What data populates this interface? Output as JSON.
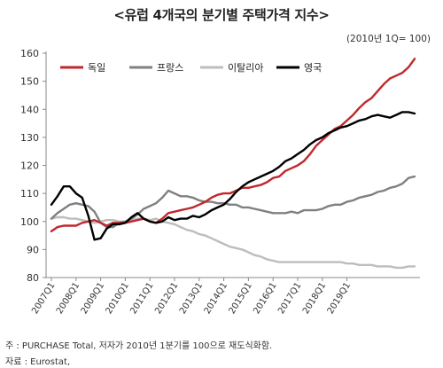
{
  "chart_data": {
    "type": "line",
    "title": "<유럽 4개국의 분기별 주택가격 지수>",
    "subtitle": "(2010년 1Q= 100)",
    "ylim": [
      80,
      160
    ],
    "yticks": [
      80,
      90,
      100,
      110,
      120,
      130,
      140,
      150,
      160
    ],
    "x_labels": [
      "2007Q1",
      "2008Q1",
      "2009Q1",
      "2010Q1",
      "2011Q1",
      "2012Q1",
      "2013Q1",
      "2014Q1",
      "2015Q1",
      "2016Q1",
      "2017Q1",
      "2018Q1",
      "2019Q1"
    ],
    "x_start": "2007Q1",
    "x_end": "2020Q2",
    "grid": false,
    "legend_position": "top",
    "series": [
      {
        "name": "독일",
        "color": "#c0282d",
        "values": [
          96.5,
          98.0,
          98.5,
          98.5,
          98.5,
          99.5,
          100.0,
          100.5,
          99.5,
          98.5,
          99.5,
          99.5,
          99.5,
          100.0,
          100.5,
          101.0,
          100.0,
          99.5,
          101.0,
          103.0,
          103.5,
          104.0,
          104.5,
          105.0,
          106.0,
          107.0,
          108.5,
          109.5,
          110.0,
          110.0,
          111.0,
          112.0,
          112.0,
          112.5,
          113.0,
          114.0,
          115.5,
          116.0,
          118.0,
          119.0,
          120.0,
          121.5,
          124.0,
          127.0,
          129.0,
          131.0,
          133.0,
          134.0,
          136.0,
          138.0,
          140.5,
          142.5,
          144.0,
          146.5,
          149.0,
          151.0,
          152.0,
          153.0,
          155.0,
          158.0
        ]
      },
      {
        "name": "프랑스",
        "color": "#808080",
        "values": [
          101.0,
          103.0,
          104.5,
          106.0,
          106.5,
          106.0,
          105.5,
          103.5,
          99.5,
          98.0,
          98.0,
          99.5,
          100.0,
          101.0,
          102.5,
          104.5,
          105.5,
          106.5,
          108.5,
          111.0,
          110.0,
          109.0,
          109.0,
          108.5,
          107.5,
          107.0,
          107.0,
          106.5,
          106.5,
          106.0,
          106.0,
          105.0,
          105.0,
          104.5,
          104.0,
          103.5,
          103.0,
          103.0,
          103.0,
          103.5,
          103.0,
          104.0,
          104.0,
          104.0,
          104.5,
          105.5,
          106.0,
          106.0,
          107.0,
          107.5,
          108.5,
          109.0,
          109.5,
          110.5,
          111.0,
          112.0,
          112.5,
          113.5,
          115.5,
          116.0
        ]
      },
      {
        "name": "이탈리아",
        "color": "#bdbdbd",
        "values": [
          101.0,
          101.5,
          101.5,
          101.0,
          101.0,
          100.5,
          100.0,
          99.5,
          100.0,
          100.5,
          100.5,
          100.0,
          100.0,
          100.5,
          101.0,
          101.0,
          100.5,
          101.0,
          100.0,
          99.5,
          99.0,
          98.0,
          97.0,
          96.5,
          95.5,
          95.0,
          94.0,
          93.0,
          92.0,
          91.0,
          90.5,
          90.0,
          89.0,
          88.0,
          87.5,
          86.5,
          86.0,
          85.5,
          85.5,
          85.5,
          85.5,
          85.5,
          85.5,
          85.5,
          85.5,
          85.5,
          85.5,
          85.5,
          85.0,
          85.0,
          84.5,
          84.5,
          84.5,
          84.0,
          84.0,
          84.0,
          83.5,
          83.5,
          84.0,
          84.0
        ]
      },
      {
        "name": "영국",
        "color": "#000000",
        "values": [
          106.0,
          109.0,
          112.5,
          112.5,
          110.0,
          108.5,
          102.0,
          93.5,
          94.0,
          97.5,
          99.0,
          99.0,
          99.5,
          101.5,
          103.0,
          101.0,
          100.0,
          99.5,
          100.0,
          101.5,
          100.5,
          101.0,
          101.0,
          102.0,
          101.5,
          102.5,
          104.0,
          105.0,
          106.0,
          108.0,
          110.5,
          112.5,
          114.0,
          115.0,
          116.0,
          117.0,
          118.0,
          119.5,
          121.5,
          122.5,
          124.0,
          125.5,
          127.5,
          129.0,
          130.0,
          131.5,
          132.5,
          133.5,
          134.0,
          135.0,
          136.0,
          136.5,
          137.5,
          138.0,
          137.5,
          137.0,
          138.0,
          139.0,
          139.0,
          138.5
        ]
      }
    ]
  },
  "notes": {
    "line1": "주 : PURCHASE Total, 저자가 2010년 1분기를 100으로 재도식화함.",
    "line2": "자료 : Eurostat,"
  }
}
